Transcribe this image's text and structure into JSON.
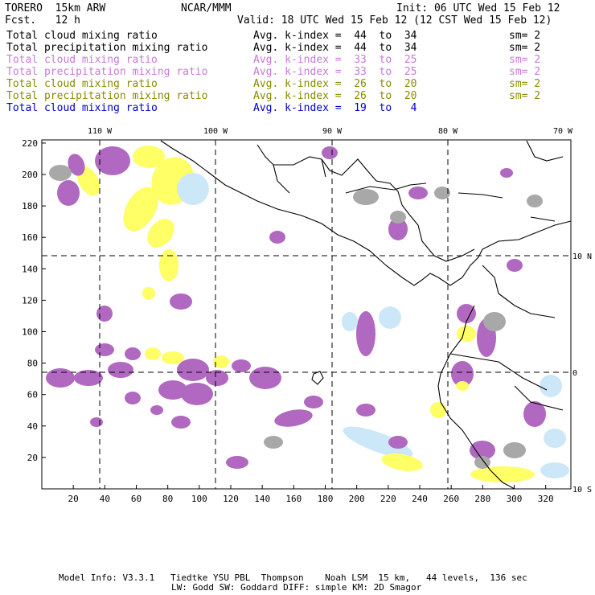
{
  "header": {
    "model": "TORERO  15km ARW",
    "org": "NCAR/MMM",
    "init": "Init: 06 UTC Wed 15 Feb 12",
    "fcst": "Fcst.   12 h",
    "valid": "Valid: 18 UTC Wed 15 Feb 12 (12 CST Wed 15 Feb 12)"
  },
  "legend": [
    {
      "field": "Total cloud mixing ratio",
      "kindex": "Avg. k-index =  44  to  34",
      "sm": "sm= 2",
      "color": "#000000"
    },
    {
      "field": "Total precipitation mixing ratio",
      "kindex": "Avg. k-index =  44  to  34",
      "sm": "sm= 2",
      "color": "#000000"
    },
    {
      "field": "Total cloud mixing ratio",
      "kindex": "Avg. k-index =  33  to  25",
      "sm": "sm= 2",
      "color": "#c77ad6"
    },
    {
      "field": "Total precipitation mixing ratio",
      "kindex": "Avg. k-index =  33  to  25",
      "sm": "sm= 2",
      "color": "#c77ad6"
    },
    {
      "field": "Total cloud mixing ratio",
      "kindex": "Avg. k-index =  26  to  20",
      "sm": "sm= 2",
      "color": "#8a8a00"
    },
    {
      "field": "Total precipitation mixing ratio",
      "kindex": "Avg. k-index =  26  to  20",
      "sm": "sm= 2",
      "color": "#8a8a00"
    },
    {
      "field": "Total cloud mixing ratio",
      "kindex": "Avg. k-index =  19  to   4",
      "sm": "",
      "color": "#0000cc"
    }
  ],
  "map": {
    "lon_labels": [
      "110 W",
      "100 W",
      "90 W",
      "80 W",
      "70 W"
    ],
    "lat_labels": [
      "10 N",
      "0",
      "10 S"
    ],
    "x_ticks": [
      "20",
      "40",
      "60",
      "80",
      "100",
      "120",
      "140",
      "160",
      "180",
      "200",
      "220",
      "240",
      "260",
      "280",
      "300",
      "320"
    ],
    "y_ticks": [
      "20",
      "40",
      "60",
      "80",
      "100",
      "120",
      "140",
      "160",
      "180",
      "200",
      "220"
    ],
    "colors": {
      "purple": "#b068c0",
      "yellow": "#ffff66",
      "lightblue": "#cce8f8",
      "gray": "#a8a8a8"
    }
  },
  "footer": {
    "line1": "Model Info: V3.3.1   Tiedtke YSU PBL  Thompson    Noah LSM  15 km,   44 levels,  136 sec",
    "line2": "LW: Godd SW: Goddard DIFF: simple KM: 2D Smagor"
  }
}
